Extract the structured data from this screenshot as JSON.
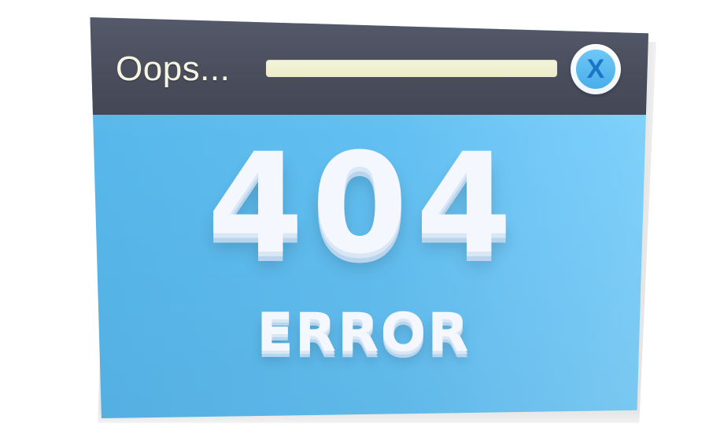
{
  "window": {
    "title": "Oops...",
    "close_label": "X"
  },
  "error": {
    "code": "404",
    "message": "ERROR"
  },
  "colors": {
    "titlebar": "#4a4e5d",
    "body": "#62bff1",
    "text": "#f5f7ff",
    "accent": "#1b75c5"
  },
  "icons": {
    "close": "close-icon"
  }
}
